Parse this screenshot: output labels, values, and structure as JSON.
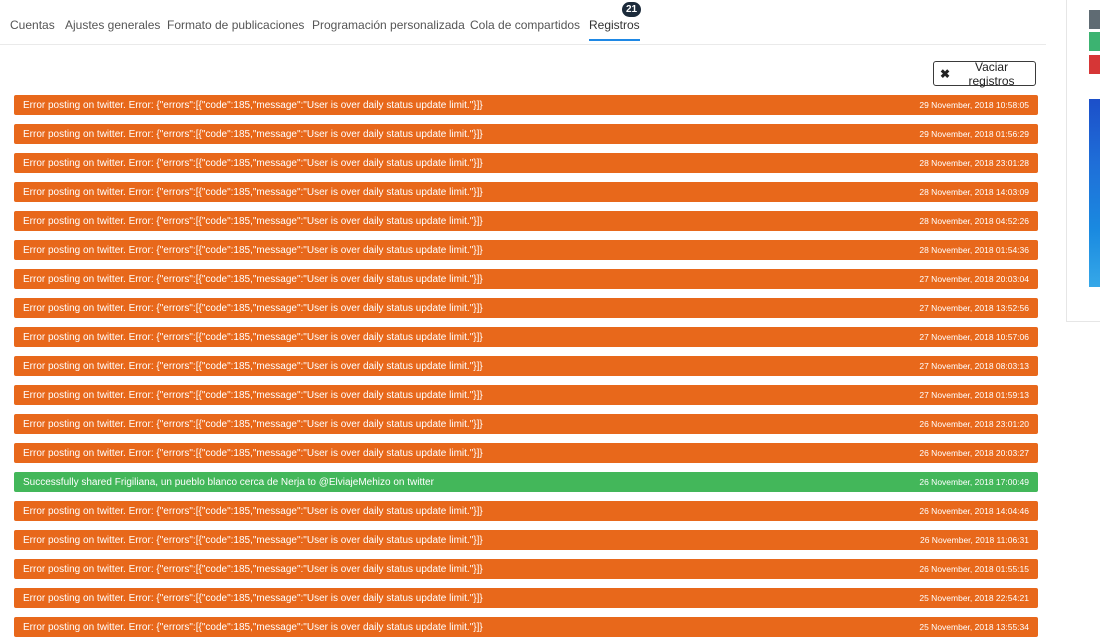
{
  "tabs": [
    {
      "label": "Cuentas"
    },
    {
      "label": "Ajustes generales"
    },
    {
      "label": "Formato de publicaciones"
    },
    {
      "label": "Programación personalizada"
    },
    {
      "label": "Cola de compartidos"
    },
    {
      "label": "Registros",
      "badge": "21",
      "active": true
    }
  ],
  "toolbar": {
    "clear_label": "Vaciar registros",
    "clear_icon": "close-icon"
  },
  "colors": {
    "error": "#e8681b",
    "success": "#43b75a",
    "tab_active": "#1e88e5"
  },
  "logs": [
    {
      "type": "error",
      "message": "Error posting on twitter. Error: {\"errors\":[{\"code\":185,\"message\":\"User is over daily status update limit.\"}]}",
      "date": "29 November, 2018 10:58:05"
    },
    {
      "type": "error",
      "message": "Error posting on twitter. Error: {\"errors\":[{\"code\":185,\"message\":\"User is over daily status update limit.\"}]}",
      "date": "29 November, 2018 01:56:29"
    },
    {
      "type": "error",
      "message": "Error posting on twitter. Error: {\"errors\":[{\"code\":185,\"message\":\"User is over daily status update limit.\"}]}",
      "date": "28 November, 2018 23:01:28"
    },
    {
      "type": "error",
      "message": "Error posting on twitter. Error: {\"errors\":[{\"code\":185,\"message\":\"User is over daily status update limit.\"}]}",
      "date": "28 November, 2018 14:03:09"
    },
    {
      "type": "error",
      "message": "Error posting on twitter. Error: {\"errors\":[{\"code\":185,\"message\":\"User is over daily status update limit.\"}]}",
      "date": "28 November, 2018 04:52:26"
    },
    {
      "type": "error",
      "message": "Error posting on twitter. Error: {\"errors\":[{\"code\":185,\"message\":\"User is over daily status update limit.\"}]}",
      "date": "28 November, 2018 01:54:36"
    },
    {
      "type": "error",
      "message": "Error posting on twitter. Error: {\"errors\":[{\"code\":185,\"message\":\"User is over daily status update limit.\"}]}",
      "date": "27 November, 2018 20:03:04"
    },
    {
      "type": "error",
      "message": "Error posting on twitter. Error: {\"errors\":[{\"code\":185,\"message\":\"User is over daily status update limit.\"}]}",
      "date": "27 November, 2018 13:52:56"
    },
    {
      "type": "error",
      "message": "Error posting on twitter. Error: {\"errors\":[{\"code\":185,\"message\":\"User is over daily status update limit.\"}]}",
      "date": "27 November, 2018 10:57:06"
    },
    {
      "type": "error",
      "message": "Error posting on twitter. Error: {\"errors\":[{\"code\":185,\"message\":\"User is over daily status update limit.\"}]}",
      "date": "27 November, 2018 08:03:13"
    },
    {
      "type": "error",
      "message": "Error posting on twitter. Error: {\"errors\":[{\"code\":185,\"message\":\"User is over daily status update limit.\"}]}",
      "date": "27 November, 2018 01:59:13"
    },
    {
      "type": "error",
      "message": "Error posting on twitter. Error: {\"errors\":[{\"code\":185,\"message\":\"User is over daily status update limit.\"}]}",
      "date": "26 November, 2018 23:01:20"
    },
    {
      "type": "error",
      "message": "Error posting on twitter. Error: {\"errors\":[{\"code\":185,\"message\":\"User is over daily status update limit.\"}]}",
      "date": "26 November, 2018 20:03:27"
    },
    {
      "type": "success",
      "message": "Successfully shared Frigiliana, un pueblo blanco cerca de Nerja to @ElviajeMehizo on twitter",
      "date": "26 November, 2018 17:00:49"
    },
    {
      "type": "error",
      "message": "Error posting on twitter. Error: {\"errors\":[{\"code\":185,\"message\":\"User is over daily status update limit.\"}]}",
      "date": "26 November, 2018 14:04:46"
    },
    {
      "type": "error",
      "message": "Error posting on twitter. Error: {\"errors\":[{\"code\":185,\"message\":\"User is over daily status update limit.\"}]}",
      "date": "26 November, 2018 11:06:31"
    },
    {
      "type": "error",
      "message": "Error posting on twitter. Error: {\"errors\":[{\"code\":185,\"message\":\"User is over daily status update limit.\"}]}",
      "date": "26 November, 2018 01:55:15"
    },
    {
      "type": "error",
      "message": "Error posting on twitter. Error: {\"errors\":[{\"code\":185,\"message\":\"User is over daily status update limit.\"}]}",
      "date": "25 November, 2018 22:54:21"
    },
    {
      "type": "error",
      "message": "Error posting on twitter. Error: {\"errors\":[{\"code\":185,\"message\":\"User is over daily status update limit.\"}]}",
      "date": "25 November, 2018 13:55:34"
    }
  ]
}
